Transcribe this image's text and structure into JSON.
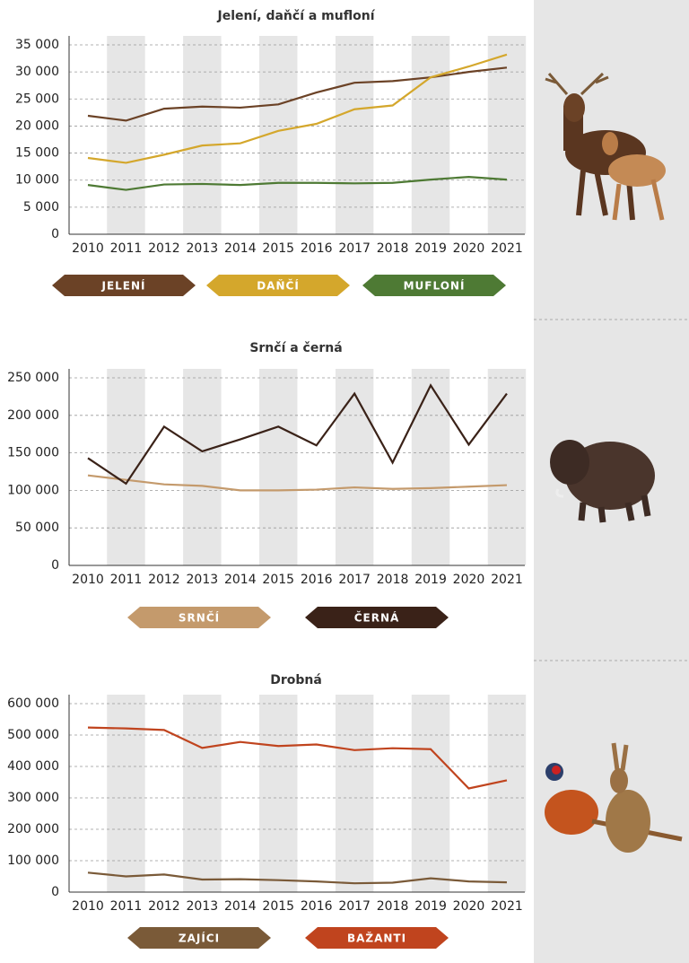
{
  "chart_data": [
    {
      "type": "line",
      "title": "Jelení, daňčí a mufloní",
      "categories": [
        "2010",
        "2011",
        "2012",
        "2013",
        "2014",
        "2015",
        "2016",
        "2017",
        "2018",
        "2019",
        "2020",
        "2021"
      ],
      "series": [
        {
          "name": "JELENÍ",
          "color": "#6b4226",
          "values": [
            21900,
            21000,
            23200,
            23600,
            23400,
            24000,
            26200,
            28000,
            28300,
            29000,
            30000,
            30800
          ]
        },
        {
          "name": "DAŇČÍ",
          "color": "#d4a72c",
          "values": [
            14100,
            13200,
            14700,
            16400,
            16800,
            19100,
            20400,
            23100,
            23800,
            29000,
            31000,
            33200
          ]
        },
        {
          "name": "MUFLONÍ",
          "color": "#4e7a34",
          "values": [
            9100,
            8200,
            9200,
            9300,
            9100,
            9500,
            9500,
            9400,
            9500,
            10100,
            10600,
            10100
          ]
        }
      ],
      "ylim": [
        0,
        35000
      ],
      "yticks": [
        0,
        {
          "value": 5000,
          "label": "5 000"
        },
        {
          "value": 10000,
          "label": "10 000"
        },
        {
          "value": 15000,
          "label": "15 000"
        },
        {
          "value": 20000,
          "label": "20 000"
        },
        {
          "value": 25000,
          "label": "25 000"
        },
        {
          "value": 30000,
          "label": "30 000"
        },
        {
          "value": 35000,
          "label": "35 000"
        }
      ],
      "grid": true
    },
    {
      "type": "line",
      "title": "Srnčí a černá",
      "categories": [
        "2010",
        "2011",
        "2012",
        "2013",
        "2014",
        "2015",
        "2016",
        "2017",
        "2018",
        "2019",
        "2020",
        "2021"
      ],
      "series": [
        {
          "name": "SRNČÍ",
          "color": "#c49a6c",
          "values": [
            120000,
            114000,
            108000,
            106000,
            100000,
            100000,
            101000,
            104000,
            102000,
            103000,
            105000,
            107000
          ]
        },
        {
          "name": "ČERNÁ",
          "color": "#3a2218",
          "values": [
            143000,
            109000,
            185000,
            152000,
            168000,
            185000,
            160000,
            229000,
            137000,
            240000,
            161000,
            229000
          ]
        }
      ],
      "ylim": [
        0,
        250000
      ],
      "yticks": [
        0,
        {
          "value": 50000,
          "label": "50 000"
        },
        {
          "value": 100000,
          "label": "100 000"
        },
        {
          "value": 150000,
          "label": "150 000"
        },
        {
          "value": 200000,
          "label": "200 000"
        },
        {
          "value": 250000,
          "label": "250 000"
        }
      ],
      "grid": true
    },
    {
      "type": "line",
      "title": "Drobná",
      "categories": [
        "2010",
        "2011",
        "2012",
        "2013",
        "2014",
        "2015",
        "2016",
        "2017",
        "2018",
        "2019",
        "2020",
        "2021"
      ],
      "series": [
        {
          "name": "ZAJÍCI",
          "color": "#7a5a38",
          "values": [
            62000,
            50000,
            56000,
            40000,
            41000,
            38000,
            34000,
            28000,
            30000,
            44000,
            34000,
            31000
          ]
        },
        {
          "name": "BAŽANTI",
          "color": "#c0441e",
          "values": [
            524000,
            521000,
            516000,
            459000,
            478000,
            465000,
            470000,
            452000,
            458000,
            455000,
            330000,
            356000
          ]
        }
      ],
      "ylim": [
        0,
        600000
      ],
      "yticks": [
        0,
        {
          "value": 100000,
          "label": "100 000"
        },
        {
          "value": 200000,
          "label": "200 000"
        },
        {
          "value": 300000,
          "label": "300 000"
        },
        {
          "value": 400000,
          "label": "400 000"
        },
        {
          "value": 500000,
          "label": "500 000"
        },
        {
          "value": 600000,
          "label": "600 000"
        }
      ],
      "grid": true
    }
  ]
}
